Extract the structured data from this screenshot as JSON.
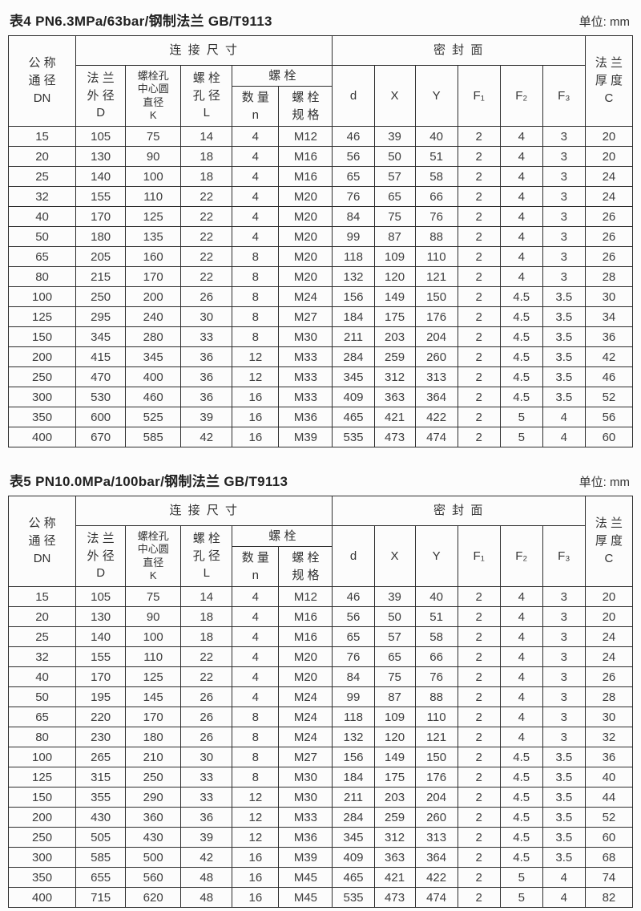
{
  "header_labels": {
    "nominal_diameter": "公 称\n通 径\nDN",
    "connection_dims": "连 接 尺 寸",
    "sealing_face": "密 封 面",
    "flange_thickness": "法 兰\n厚 度\nC",
    "flange_od": "法 兰\n外 径\nD",
    "bolt_circle_k": "螺栓孔\n中心圆\n直径\nK",
    "bolt_hole_l": "螺 栓\n孔 径\nL",
    "bolt_group": "螺 栓",
    "bolt_count": "数 量\nn",
    "bolt_spec": "螺 栓\n规 格",
    "d": "d",
    "x": "X",
    "y": "Y",
    "f1": "F₁",
    "f2": "F₂",
    "f3": "F₃"
  },
  "tables": [
    {
      "title": "表4 PN6.3MPa/63bar/钢制法兰 GB/T9113",
      "unit": "单位: mm",
      "rows": [
        [
          15,
          105,
          75,
          14,
          4,
          "M12",
          46,
          39,
          40,
          2,
          4,
          3,
          20
        ],
        [
          20,
          130,
          90,
          18,
          4,
          "M16",
          56,
          50,
          51,
          2,
          4,
          3,
          20
        ],
        [
          25,
          140,
          100,
          18,
          4,
          "M16",
          65,
          57,
          58,
          2,
          4,
          3,
          24
        ],
        [
          32,
          155,
          110,
          22,
          4,
          "M20",
          76,
          65,
          66,
          2,
          4,
          3,
          24
        ],
        [
          40,
          170,
          125,
          22,
          4,
          "M20",
          84,
          75,
          76,
          2,
          4,
          3,
          26
        ],
        [
          50,
          180,
          135,
          22,
          4,
          "M20",
          99,
          87,
          88,
          2,
          4,
          3,
          26
        ],
        [
          65,
          205,
          160,
          22,
          8,
          "M20",
          118,
          109,
          110,
          2,
          4,
          3,
          26
        ],
        [
          80,
          215,
          170,
          22,
          8,
          "M20",
          132,
          120,
          121,
          2,
          4,
          3,
          28
        ],
        [
          100,
          250,
          200,
          26,
          8,
          "M24",
          156,
          149,
          150,
          2,
          4.5,
          3.5,
          30
        ],
        [
          125,
          295,
          240,
          30,
          8,
          "M27",
          184,
          175,
          176,
          2,
          4.5,
          3.5,
          34
        ],
        [
          150,
          345,
          280,
          33,
          8,
          "M30",
          211,
          203,
          204,
          2,
          4.5,
          3.5,
          36
        ],
        [
          200,
          415,
          345,
          36,
          12,
          "M33",
          284,
          259,
          260,
          2,
          4.5,
          3.5,
          42
        ],
        [
          250,
          470,
          400,
          36,
          12,
          "M33",
          345,
          312,
          313,
          2,
          4.5,
          3.5,
          46
        ],
        [
          300,
          530,
          460,
          36,
          16,
          "M33",
          409,
          363,
          364,
          2,
          4.5,
          3.5,
          52
        ],
        [
          350,
          600,
          525,
          39,
          16,
          "M36",
          465,
          421,
          422,
          2,
          5,
          4,
          56
        ],
        [
          400,
          670,
          585,
          42,
          16,
          "M39",
          535,
          473,
          474,
          2,
          5,
          4,
          60
        ]
      ]
    },
    {
      "title": "表5 PN10.0MPa/100bar/钢制法兰 GB/T9113",
      "unit": "单位: mm",
      "rows": [
        [
          15,
          105,
          75,
          14,
          4,
          "M12",
          46,
          39,
          40,
          2,
          4,
          3,
          20
        ],
        [
          20,
          130,
          90,
          18,
          4,
          "M16",
          56,
          50,
          51,
          2,
          4,
          3,
          20
        ],
        [
          25,
          140,
          100,
          18,
          4,
          "M16",
          65,
          57,
          58,
          2,
          4,
          3,
          24
        ],
        [
          32,
          155,
          110,
          22,
          4,
          "M20",
          76,
          65,
          66,
          2,
          4,
          3,
          24
        ],
        [
          40,
          170,
          125,
          22,
          4,
          "M20",
          84,
          75,
          76,
          2,
          4,
          3,
          26
        ],
        [
          50,
          195,
          145,
          26,
          4,
          "M24",
          99,
          87,
          88,
          2,
          4,
          3,
          28
        ],
        [
          65,
          220,
          170,
          26,
          8,
          "M24",
          118,
          109,
          110,
          2,
          4,
          3,
          30
        ],
        [
          80,
          230,
          180,
          26,
          8,
          "M24",
          132,
          120,
          121,
          2,
          4,
          3,
          32
        ],
        [
          100,
          265,
          210,
          30,
          8,
          "M27",
          156,
          149,
          150,
          2,
          4.5,
          3.5,
          36
        ],
        [
          125,
          315,
          250,
          33,
          8,
          "M30",
          184,
          175,
          176,
          2,
          4.5,
          3.5,
          40
        ],
        [
          150,
          355,
          290,
          33,
          12,
          "M30",
          211,
          203,
          204,
          2,
          4.5,
          3.5,
          44
        ],
        [
          200,
          430,
          360,
          36,
          12,
          "M33",
          284,
          259,
          260,
          2,
          4.5,
          3.5,
          52
        ],
        [
          250,
          505,
          430,
          39,
          12,
          "M36",
          345,
          312,
          313,
          2,
          4.5,
          3.5,
          60
        ],
        [
          300,
          585,
          500,
          42,
          16,
          "M39",
          409,
          363,
          364,
          2,
          4.5,
          3.5,
          68
        ],
        [
          350,
          655,
          560,
          48,
          16,
          "M45",
          465,
          421,
          422,
          2,
          5,
          4,
          74
        ],
        [
          400,
          715,
          620,
          48,
          16,
          "M45",
          535,
          473,
          474,
          2,
          5,
          4,
          82
        ]
      ]
    }
  ]
}
